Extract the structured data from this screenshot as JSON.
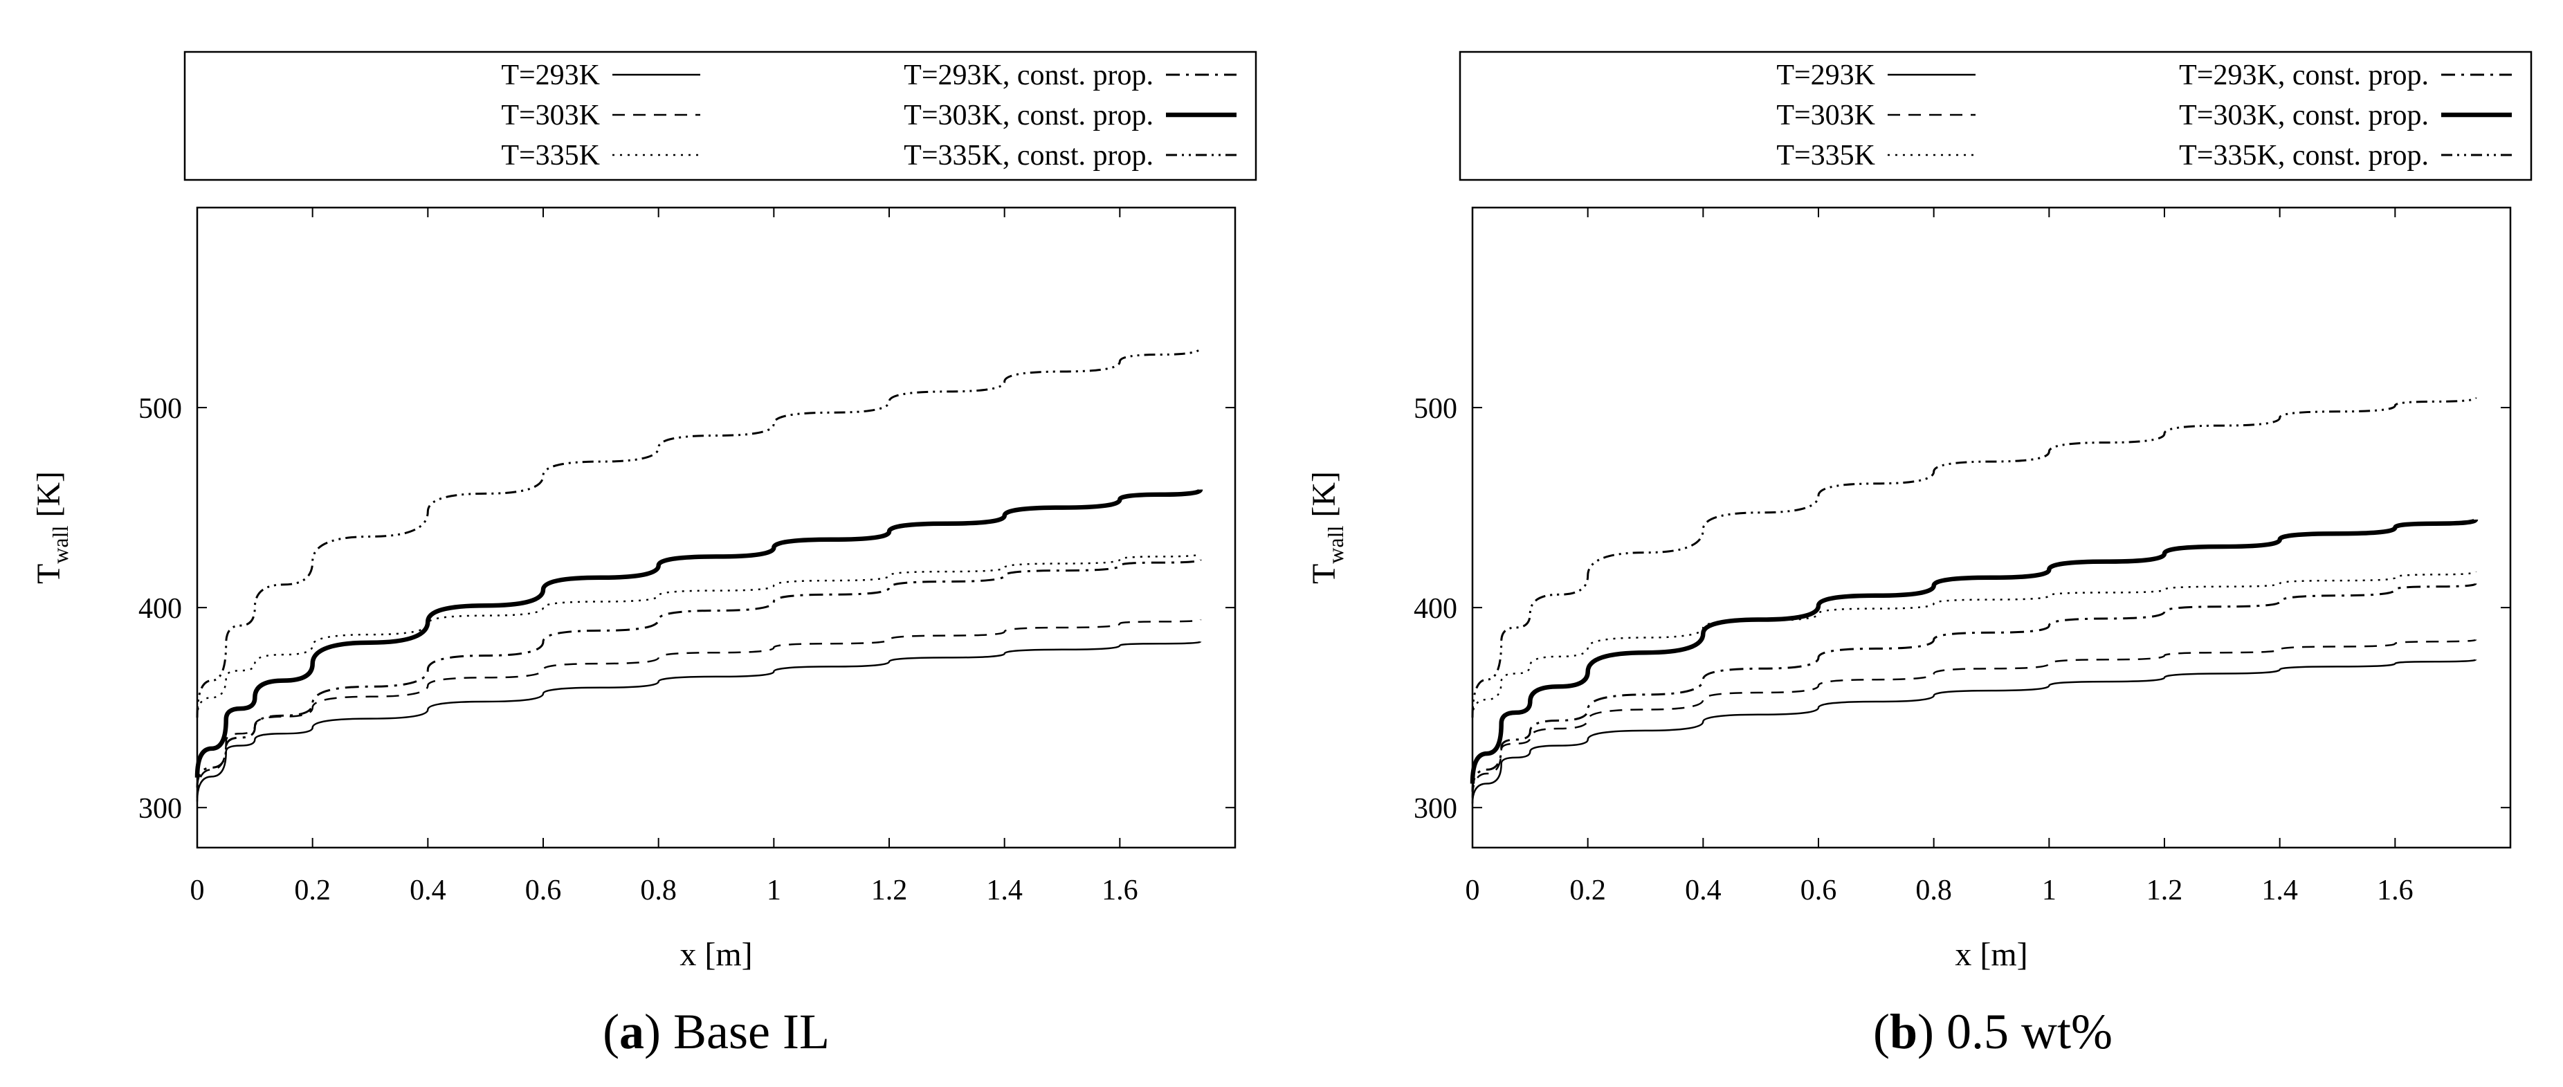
{
  "legend_entries": [
    {
      "label": "T=293K",
      "style": "solid"
    },
    {
      "label": "T=303K",
      "style": "dashed"
    },
    {
      "label": "T=335K",
      "style": "dotted"
    },
    {
      "label": "T=293K, const. prop.",
      "style": "dashdot"
    },
    {
      "label": "T=303K, const. prop.",
      "style": "thick"
    },
    {
      "label": "T=335K, const. prop.",
      "style": "dashdotdot"
    }
  ],
  "chart_data": [
    {
      "type": "line",
      "title": "",
      "caption_letter": "a",
      "caption_text": "Base IL",
      "xlabel": "x [m]",
      "ylabel": "T",
      "ylabel_sub": "wall",
      "ylabel_unit": " [K]",
      "xlim": [
        0,
        1.8
      ],
      "ylim": [
        280,
        600
      ],
      "xticks": [
        0,
        0.2,
        0.4,
        0.6,
        0.8,
        1,
        1.2,
        1.4,
        1.6
      ],
      "yticks": [
        300,
        400,
        500
      ],
      "series": [
        {
          "name": "T=293K",
          "style": "solid",
          "x": [
            0,
            0.05,
            0.1,
            0.2,
            0.4,
            0.6,
            0.8,
            1.0,
            1.2,
            1.4,
            1.6,
            1.74
          ],
          "y": [
            303,
            328,
            334,
            340,
            349,
            357,
            363,
            368,
            373,
            377,
            381,
            383
          ]
        },
        {
          "name": "T=303K",
          "style": "dashed",
          "x": [
            0,
            0.05,
            0.1,
            0.2,
            0.4,
            0.6,
            0.8,
            1.0,
            1.2,
            1.4,
            1.6,
            1.74
          ],
          "y": [
            305,
            333,
            341,
            350,
            361,
            369,
            375,
            380,
            384,
            388,
            392,
            394
          ]
        },
        {
          "name": "T=335K",
          "style": "dotted",
          "x": [
            0,
            0.05,
            0.1,
            0.2,
            0.4,
            0.6,
            0.8,
            1.0,
            1.2,
            1.4,
            1.6,
            1.74
          ],
          "y": [
            345,
            365,
            372,
            381,
            392,
            400,
            406,
            411,
            416,
            420,
            424,
            427
          ]
        },
        {
          "name": "T=293K, const. prop.",
          "style": "dashdot",
          "x": [
            0,
            0.05,
            0.1,
            0.2,
            0.4,
            0.6,
            0.8,
            1.0,
            1.2,
            1.4,
            1.6,
            1.74
          ],
          "y": [
            310,
            330,
            340,
            352,
            369,
            383,
            394,
            403,
            410,
            416,
            421,
            424
          ]
        },
        {
          "name": "T=303K, const. prop.",
          "style": "thick",
          "x": [
            0,
            0.05,
            0.1,
            0.2,
            0.4,
            0.6,
            0.8,
            1.0,
            1.2,
            1.4,
            1.6,
            1.74
          ],
          "y": [
            315,
            344,
            355,
            372,
            393,
            409,
            421,
            430,
            438,
            446,
            454,
            459
          ]
        },
        {
          "name": "T=335K, const. prop.",
          "style": "dashdotdot",
          "x": [
            0,
            0.05,
            0.1,
            0.2,
            0.4,
            0.6,
            0.8,
            1.0,
            1.2,
            1.4,
            1.6,
            1.74
          ],
          "y": [
            345,
            382,
            400,
            423,
            448,
            466,
            480,
            492,
            503,
            513,
            523,
            530
          ]
        }
      ]
    },
    {
      "type": "line",
      "title": "",
      "caption_letter": "b",
      "caption_text": "0.5 wt%",
      "xlabel": "x [m]",
      "ylabel": "T",
      "ylabel_sub": "wall",
      "ylabel_unit": " [K]",
      "xlim": [
        0,
        1.8
      ],
      "ylim": [
        280,
        600
      ],
      "xticks": [
        0,
        0.2,
        0.4,
        0.6,
        0.8,
        1,
        1.2,
        1.4,
        1.6
      ],
      "yticks": [
        300,
        400,
        500
      ],
      "series": [
        {
          "name": "T=293K",
          "style": "solid",
          "x": [
            0,
            0.05,
            0.1,
            0.2,
            0.4,
            0.6,
            0.8,
            1.0,
            1.2,
            1.4,
            1.6,
            1.74
          ],
          "y": [
            302,
            322,
            328,
            334,
            343,
            350,
            356,
            361,
            365,
            369,
            372,
            374
          ]
        },
        {
          "name": "T=303K",
          "style": "dashed",
          "x": [
            0,
            0.05,
            0.1,
            0.2,
            0.4,
            0.6,
            0.8,
            1.0,
            1.2,
            1.4,
            1.6,
            1.74
          ],
          "y": [
            305,
            329,
            335,
            344,
            354,
            361,
            367,
            372,
            376,
            379,
            382,
            384
          ]
        },
        {
          "name": "T=335K",
          "style": "dotted",
          "x": [
            0,
            0.05,
            0.1,
            0.2,
            0.4,
            0.6,
            0.8,
            1.0,
            1.2,
            1.4,
            1.6,
            1.74
          ],
          "y": [
            345,
            363,
            371,
            380,
            390,
            397,
            402,
            406,
            409,
            412,
            415,
            418
          ]
        },
        {
          "name": "T=293K, const. prop.",
          "style": "dashdot",
          "x": [
            0,
            0.05,
            0.1,
            0.2,
            0.4,
            0.6,
            0.8,
            1.0,
            1.2,
            1.4,
            1.6,
            1.74
          ],
          "y": [
            308,
            330,
            338,
            349,
            364,
            375,
            384,
            391,
            398,
            403,
            409,
            412
          ]
        },
        {
          "name": "T=303K, const. prop.",
          "style": "thick",
          "x": [
            0,
            0.05,
            0.1,
            0.2,
            0.4,
            0.6,
            0.8,
            1.0,
            1.2,
            1.4,
            1.6,
            1.74
          ],
          "y": [
            312,
            342,
            353,
            368,
            387,
            401,
            411,
            419,
            427,
            434,
            440,
            444
          ]
        },
        {
          "name": "T=335K, const. prop.",
          "style": "dashdotdot",
          "x": [
            0,
            0.05,
            0.1,
            0.2,
            0.4,
            0.6,
            0.8,
            1.0,
            1.2,
            1.4,
            1.6,
            1.74
          ],
          "y": [
            345,
            383,
            397,
            416,
            439,
            456,
            468,
            478,
            487,
            495,
            501,
            505
          ]
        }
      ]
    }
  ]
}
